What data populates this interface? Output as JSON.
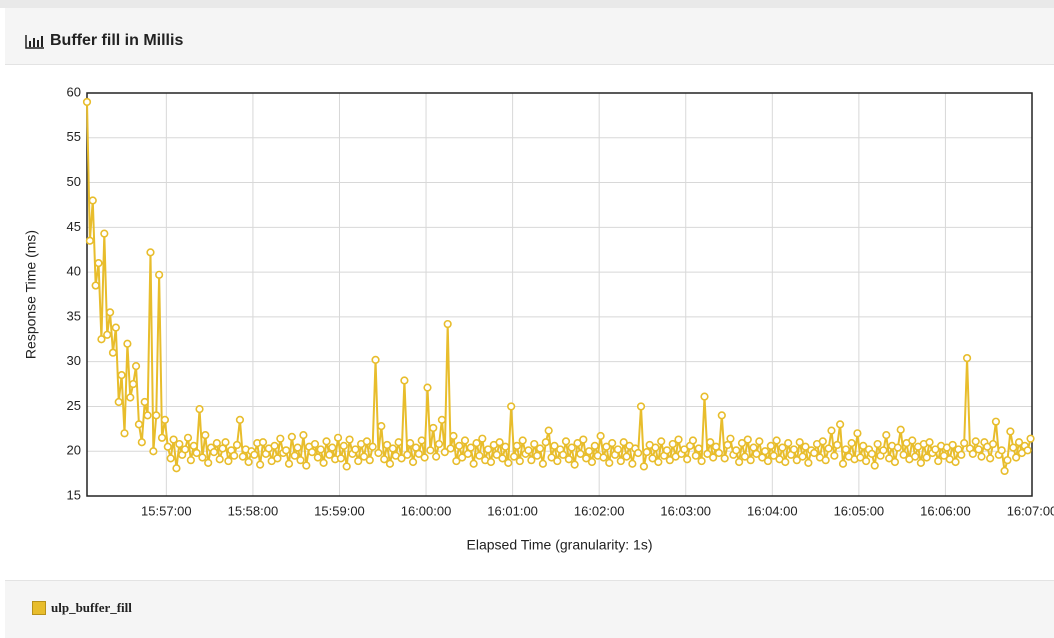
{
  "chart_data": {
    "type": "line",
    "title": "Buffer fill in Millis",
    "x_label": "Elapsed Time (granularity: 1s)",
    "y_label": "Response Time (ms)",
    "xlim": [
      "15:56:05",
      "16:07:00"
    ],
    "xticks": [
      "15:57:00",
      "15:58:00",
      "15:59:00",
      "16:00:00",
      "16:01:00",
      "16:02:00",
      "16:03:00",
      "16:04:00",
      "16:05:00",
      "16:06:00",
      "16:07:00"
    ],
    "ylim": [
      15,
      60
    ],
    "yticks": [
      15,
      20,
      25,
      30,
      35,
      40,
      45,
      50,
      55,
      60
    ],
    "grid": true,
    "legend": "bottom-left",
    "x": [
      "15:56:05",
      "15:56:07",
      "15:56:09",
      "15:56:11",
      "15:56:13",
      "15:56:15",
      "15:56:17",
      "15:56:19",
      "15:56:21",
      "15:56:23",
      "15:56:25",
      "15:56:27",
      "15:56:29",
      "15:56:31",
      "15:56:33",
      "15:56:35",
      "15:56:37",
      "15:56:39",
      "15:56:41",
      "15:56:43",
      "15:56:45",
      "15:56:47",
      "15:56:49",
      "15:56:51",
      "15:56:53",
      "15:56:55",
      "15:56:57",
      "15:56:59",
      "15:57:01",
      "15:57:03",
      "15:57:05",
      "15:57:07",
      "15:57:09",
      "15:57:11",
      "15:57:13",
      "15:57:15",
      "15:57:17",
      "15:57:19",
      "15:57:21",
      "15:57:23",
      "15:57:25",
      "15:57:27",
      "15:57:29",
      "15:57:31",
      "15:57:33",
      "15:57:35",
      "15:57:37",
      "15:57:39",
      "15:57:41",
      "15:57:43",
      "15:57:45",
      "15:57:47",
      "15:57:49",
      "15:57:51",
      "15:57:53",
      "15:57:55",
      "15:57:57",
      "15:57:59",
      "15:58:01",
      "15:58:03",
      "15:58:05",
      "15:58:07",
      "15:58:09",
      "15:58:11",
      "15:58:13",
      "15:58:15",
      "15:58:17",
      "15:58:19",
      "15:58:21",
      "15:58:23",
      "15:58:25",
      "15:58:27",
      "15:58:29",
      "15:58:31",
      "15:58:33",
      "15:58:35",
      "15:58:37",
      "15:58:39",
      "15:58:41",
      "15:58:43",
      "15:58:45",
      "15:58:47",
      "15:58:49",
      "15:58:51",
      "15:58:53",
      "15:58:55",
      "15:58:57",
      "15:58:59",
      "15:59:01",
      "15:59:03",
      "15:59:05",
      "15:59:07",
      "15:59:09",
      "15:59:11",
      "15:59:13",
      "15:59:15",
      "15:59:17",
      "15:59:19",
      "15:59:21",
      "15:59:23",
      "15:59:25",
      "15:59:27",
      "15:59:29",
      "15:59:31",
      "15:59:33",
      "15:59:35",
      "15:59:37",
      "15:59:39",
      "15:59:41",
      "15:59:43",
      "15:59:45",
      "15:59:47",
      "15:59:49",
      "15:59:51",
      "15:59:53",
      "15:59:55",
      "15:59:57",
      "15:59:59",
      "16:00:01",
      "16:00:03",
      "16:00:05",
      "16:00:07",
      "16:00:09",
      "16:00:11",
      "16:00:13",
      "16:00:15",
      "16:00:17",
      "16:00:19",
      "16:00:21",
      "16:00:23",
      "16:00:25",
      "16:00:27",
      "16:00:29",
      "16:00:31",
      "16:00:33",
      "16:00:35",
      "16:00:37",
      "16:00:39",
      "16:00:41",
      "16:00:43",
      "16:00:45",
      "16:00:47",
      "16:00:49",
      "16:00:51",
      "16:00:53",
      "16:00:55",
      "16:00:57",
      "16:00:59",
      "16:01:01",
      "16:01:03",
      "16:01:05",
      "16:01:07",
      "16:01:09",
      "16:01:11",
      "16:01:13",
      "16:01:15",
      "16:01:17",
      "16:01:19",
      "16:01:21",
      "16:01:23",
      "16:01:25",
      "16:01:27",
      "16:01:29",
      "16:01:31",
      "16:01:33",
      "16:01:35",
      "16:01:37",
      "16:01:39",
      "16:01:41",
      "16:01:43",
      "16:01:45",
      "16:01:47",
      "16:01:49",
      "16:01:51",
      "16:01:53",
      "16:01:55",
      "16:01:57",
      "16:01:59",
      "16:02:01",
      "16:02:03",
      "16:02:05",
      "16:02:07",
      "16:02:09",
      "16:02:11",
      "16:02:13",
      "16:02:15",
      "16:02:17",
      "16:02:19",
      "16:02:21",
      "16:02:23",
      "16:02:25",
      "16:02:27",
      "16:02:29",
      "16:02:31",
      "16:02:33",
      "16:02:35",
      "16:02:37",
      "16:02:39",
      "16:02:41",
      "16:02:43",
      "16:02:45",
      "16:02:47",
      "16:02:49",
      "16:02:51",
      "16:02:53",
      "16:02:55",
      "16:02:57",
      "16:02:59",
      "16:03:01",
      "16:03:03",
      "16:03:05",
      "16:03:07",
      "16:03:09",
      "16:03:11",
      "16:03:13",
      "16:03:15",
      "16:03:17",
      "16:03:19",
      "16:03:21",
      "16:03:23",
      "16:03:25",
      "16:03:27",
      "16:03:29",
      "16:03:31",
      "16:03:33",
      "16:03:35",
      "16:03:37",
      "16:03:39",
      "16:03:41",
      "16:03:43",
      "16:03:45",
      "16:03:47",
      "16:03:49",
      "16:03:51",
      "16:03:53",
      "16:03:55",
      "16:03:57",
      "16:03:59",
      "16:04:01",
      "16:04:03",
      "16:04:05",
      "16:04:07",
      "16:04:09",
      "16:04:11",
      "16:04:13",
      "16:04:15",
      "16:04:17",
      "16:04:19",
      "16:04:21",
      "16:04:23",
      "16:04:25",
      "16:04:27",
      "16:04:29",
      "16:04:31",
      "16:04:33",
      "16:04:35",
      "16:04:37",
      "16:04:39",
      "16:04:41",
      "16:04:43",
      "16:04:45",
      "16:04:47",
      "16:04:49",
      "16:04:51",
      "16:04:53",
      "16:04:55",
      "16:04:57",
      "16:04:59",
      "16:05:01",
      "16:05:03",
      "16:05:05",
      "16:05:07",
      "16:05:09",
      "16:05:11",
      "16:05:13",
      "16:05:15",
      "16:05:17",
      "16:05:19",
      "16:05:21",
      "16:05:23",
      "16:05:25",
      "16:05:27",
      "16:05:29",
      "16:05:31",
      "16:05:33",
      "16:05:35",
      "16:05:37",
      "16:05:39",
      "16:05:41",
      "16:05:43",
      "16:05:45",
      "16:05:47",
      "16:05:49",
      "16:05:51",
      "16:05:53",
      "16:05:55",
      "16:05:57",
      "16:05:59",
      "16:06:01",
      "16:06:03",
      "16:06:05",
      "16:06:07",
      "16:06:09",
      "16:06:11",
      "16:06:13",
      "16:06:15",
      "16:06:17",
      "16:06:19",
      "16:06:21",
      "16:06:23",
      "16:06:25",
      "16:06:27",
      "16:06:29",
      "16:06:31",
      "16:06:33",
      "16:06:35",
      "16:06:37",
      "16:06:39",
      "16:06:41",
      "16:06:43",
      "16:06:45",
      "16:06:47",
      "16:06:49",
      "16:06:51",
      "16:06:53",
      "16:06:55",
      "16:06:57",
      "16:06:59"
    ],
    "series": [
      {
        "name": "ulp_buffer_fill",
        "color": "#e8bd2c",
        "values": [
          59,
          43.5,
          48,
          38.5,
          41,
          32.5,
          44.3,
          33,
          35.5,
          31,
          33.8,
          25.5,
          28.5,
          22,
          32,
          26,
          27.5,
          29.5,
          23,
          21,
          25.5,
          24,
          42.2,
          20,
          24,
          39.7,
          21.5,
          23.5,
          20.5,
          19.2,
          21.3,
          18.1,
          20.8,
          19.6,
          20.2,
          21.5,
          19.0,
          20.6,
          19.8,
          24.7,
          19.3,
          21.8,
          18.7,
          20.4,
          19.9,
          20.9,
          19.1,
          20.3,
          21.0,
          18.9,
          20.1,
          19.5,
          20.7,
          23.5,
          19.4,
          20.2,
          18.8,
          20.0,
          19.6,
          20.9,
          18.5,
          21.0,
          19.7,
          20.3,
          18.9,
          20.6,
          19.2,
          21.4,
          19.8,
          20.1,
          18.6,
          21.6,
          19.5,
          20.4,
          19.0,
          21.8,
          18.4,
          20.5,
          19.9,
          20.8,
          19.3,
          20.2,
          18.7,
          21.1,
          19.6,
          20.4,
          19.1,
          21.5,
          19.2,
          20.6,
          18.3,
          21.3,
          19.7,
          20.2,
          18.9,
          20.8,
          19.4,
          21.1,
          19.0,
          20.5,
          30.2,
          19.8,
          22.8,
          19.1,
          20.7,
          18.6,
          20.3,
          19.5,
          21.0,
          19.2,
          27.9,
          19.6,
          20.9,
          18.8,
          20.4,
          19.7,
          21.2,
          19.3,
          27.1,
          20.1,
          22.6,
          19.4,
          20.8,
          23.5,
          19.9,
          34.2,
          20.3,
          21.7,
          18.9,
          20.6,
          19.3,
          21.2,
          19.7,
          20.4,
          18.6,
          20.9,
          19.5,
          21.4,
          19.0,
          20.2,
          18.8,
          20.7,
          19.6,
          21.0,
          19.2,
          20.5,
          18.7,
          25.0,
          19.4,
          20.6,
          18.9,
          21.2,
          19.7,
          20.1,
          19.0,
          20.8,
          19.5,
          20.3,
          18.6,
          21.0,
          22.3,
          19.3,
          20.6,
          18.9,
          20.2,
          19.6,
          21.1,
          19.1,
          20.4,
          18.5,
          20.9,
          19.7,
          21.3,
          19.2,
          20.0,
          18.8,
          20.6,
          19.5,
          21.7,
          19.3,
          20.5,
          18.7,
          20.9,
          19.6,
          20.2,
          18.9,
          21.0,
          19.4,
          20.6,
          18.6,
          20.3,
          19.8,
          25.0,
          18.3,
          19.9,
          20.7,
          19.2,
          20.4,
          18.8,
          21.1,
          19.5,
          20.1,
          19.0,
          20.8,
          19.4,
          21.3,
          19.7,
          20.2,
          19.1,
          20.6,
          21.2,
          19.5,
          20.3,
          18.9,
          26.1,
          19.7,
          21.0,
          19.3,
          20.5,
          19.8,
          24.0,
          19.2,
          20.7,
          21.4,
          19.6,
          20.1,
          18.8,
          20.9,
          19.4,
          21.3,
          19.0,
          20.4,
          19.7,
          21.1,
          19.3,
          20.0,
          18.9,
          20.6,
          19.5,
          21.2,
          19.1,
          20.4,
          18.8,
          20.9,
          19.6,
          20.2,
          19.0,
          21.0,
          19.4,
          20.5,
          18.7,
          20.1,
          19.8,
          20.8,
          19.3,
          21.1,
          19.0,
          20.3,
          22.3,
          19.5,
          20.7,
          23.0,
          18.6,
          20.2,
          19.4,
          20.9,
          19.1,
          22.0,
          19.3,
          20.6,
          18.9,
          20.2,
          19.7,
          18.4,
          20.8,
          19.5,
          20.1,
          21.8,
          19.2,
          20.6,
          18.8,
          20.4,
          22.4,
          19.6,
          20.9,
          19.1,
          21.2,
          19.4,
          20.5,
          18.7,
          20.8,
          19.3,
          21.0,
          19.8,
          20.2,
          18.9,
          20.6,
          19.5,
          20.4,
          19.1,
          20.7,
          18.8,
          20.2,
          19.6,
          20.9,
          30.4,
          20.3,
          19.7,
          21.1,
          20.2,
          19.4,
          21.0,
          20.5,
          19.2,
          20.8,
          23.3,
          19.6,
          20.1,
          17.8,
          19.0,
          22.2,
          20.4,
          19.3,
          21.0,
          19.8,
          20.6,
          20.1,
          21.4
        ]
      }
    ]
  }
}
